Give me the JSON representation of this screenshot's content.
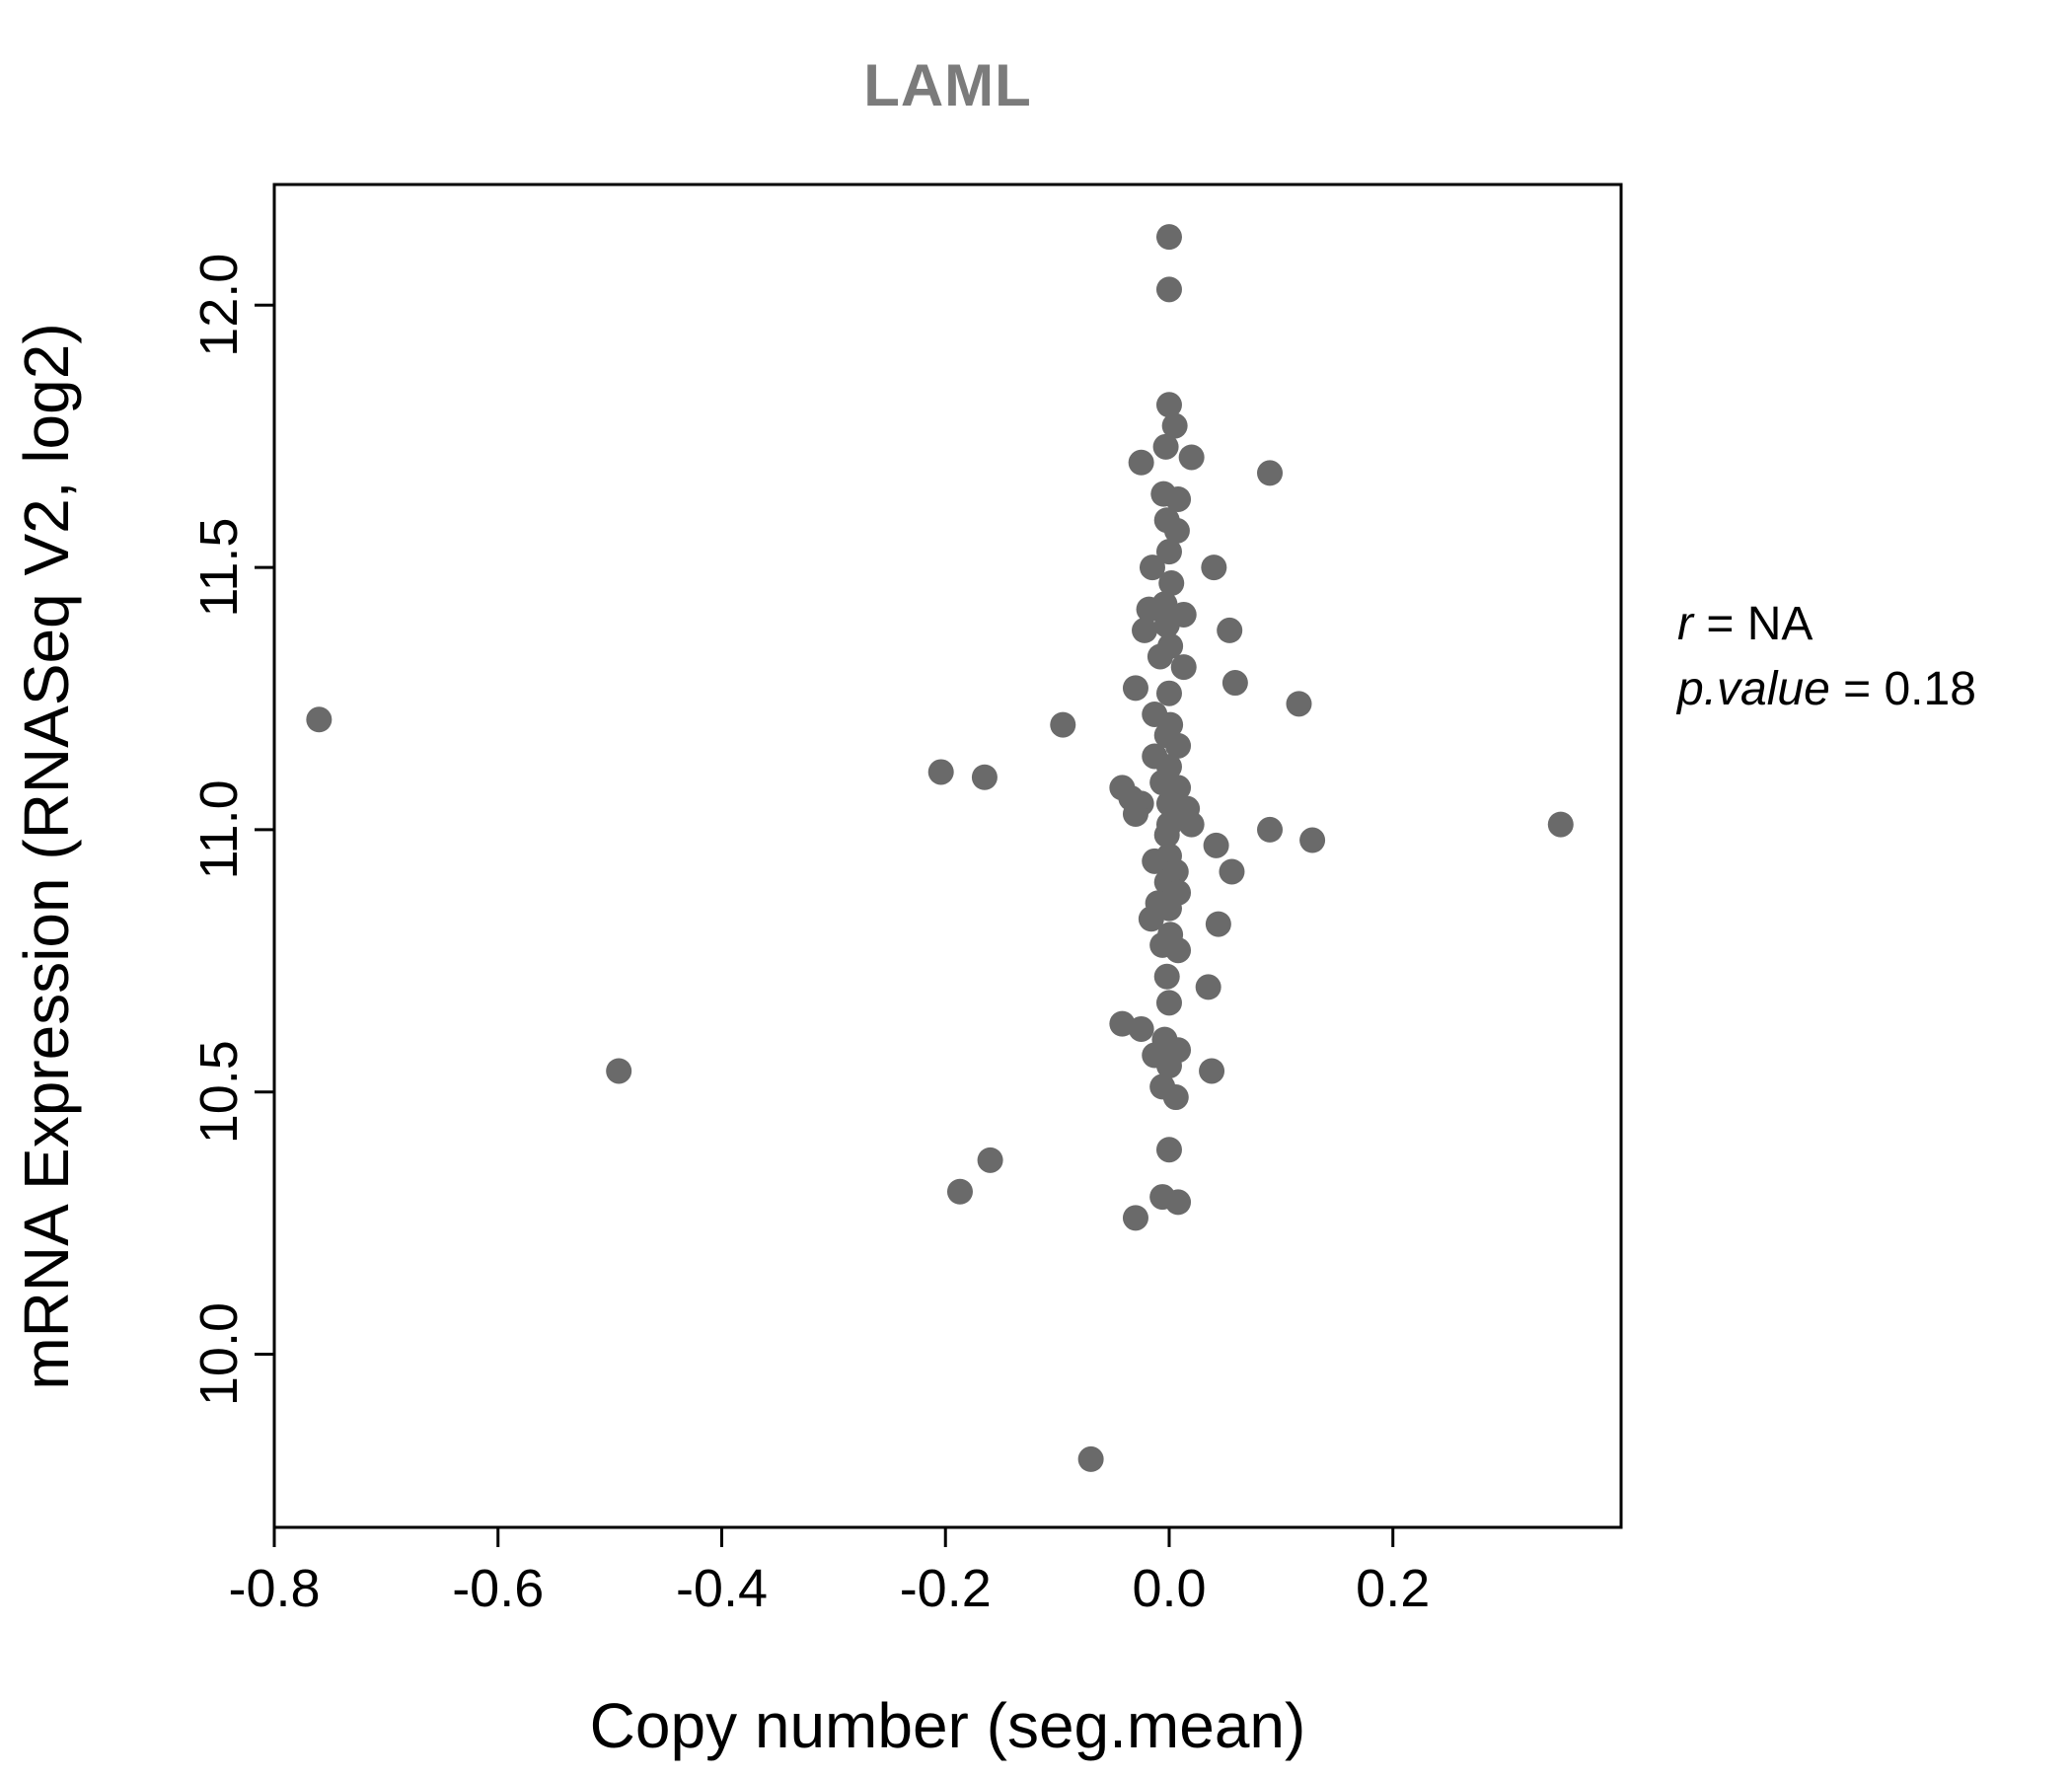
{
  "title": "LAML",
  "annotation": {
    "r_label": "r",
    "r_value": " = NA",
    "p_label": "p.value",
    "p_value": " = 0.18"
  },
  "chart_data": {
    "type": "scatter",
    "title": "LAML",
    "xlabel": "Copy number (seg.mean)",
    "ylabel": "mRNA Expression (RNASeq V2, log2)",
    "xlim": [
      -0.8,
      0.404
    ],
    "ylim": [
      9.67,
      12.23
    ],
    "xticks": [
      "-0.8",
      "-0.6",
      "-0.4",
      "-0.2",
      "0.0",
      "0.2"
    ],
    "xtick_values": [
      -0.8,
      -0.6,
      -0.4,
      -0.2,
      0.0,
      0.2
    ],
    "yticks": [
      "10.0",
      "10.5",
      "11.0",
      "11.5",
      "12.0"
    ],
    "ytick_values": [
      10.0,
      10.5,
      11.0,
      11.5,
      12.0
    ],
    "grid": false,
    "legend": "none",
    "point_color": "#6a6a6a",
    "title_color": "#7b7b7b",
    "annotation_text": [
      "r = NA",
      "p.value = 0.18"
    ],
    "points": [
      [
        0.0,
        12.13
      ],
      [
        0.0,
        12.03
      ],
      [
        0.0,
        11.81
      ],
      [
        0.005,
        11.77
      ],
      [
        -0.003,
        11.73
      ],
      [
        -0.025,
        11.7
      ],
      [
        0.02,
        11.71
      ],
      [
        0.09,
        11.68
      ],
      [
        -0.005,
        11.64
      ],
      [
        0.008,
        11.63
      ],
      [
        -0.002,
        11.59
      ],
      [
        0.007,
        11.57
      ],
      [
        0.0,
        11.53
      ],
      [
        -0.015,
        11.5
      ],
      [
        0.04,
        11.5
      ],
      [
        0.002,
        11.47
      ],
      [
        -0.004,
        11.43
      ],
      [
        -0.018,
        11.42
      ],
      [
        0.013,
        11.41
      ],
      [
        -0.002,
        11.39
      ],
      [
        -0.022,
        11.38
      ],
      [
        0.054,
        11.38
      ],
      [
        0.001,
        11.35
      ],
      [
        -0.008,
        11.33
      ],
      [
        0.013,
        11.31
      ],
      [
        0.059,
        11.28
      ],
      [
        -0.03,
        11.27
      ],
      [
        0.0,
        11.26
      ],
      [
        0.116,
        11.24
      ],
      [
        -0.76,
        11.21
      ],
      [
        -0.095,
        11.2
      ],
      [
        -0.013,
        11.22
      ],
      [
        0.001,
        11.2
      ],
      [
        -0.002,
        11.18
      ],
      [
        0.008,
        11.16
      ],
      [
        -0.013,
        11.14
      ],
      [
        0.0,
        11.12
      ],
      [
        -0.204,
        11.11
      ],
      [
        -0.165,
        11.1
      ],
      [
        -0.006,
        11.09
      ],
      [
        0.008,
        11.08
      ],
      [
        -0.042,
        11.08
      ],
      [
        -0.034,
        11.06
      ],
      [
        -0.025,
        11.05
      ],
      [
        0.0,
        11.05
      ],
      [
        0.016,
        11.04
      ],
      [
        -0.03,
        11.03
      ],
      [
        0.0,
        11.01
      ],
      [
        0.02,
        11.01
      ],
      [
        0.35,
        11.01
      ],
      [
        0.09,
        11.0
      ],
      [
        0.128,
        10.98
      ],
      [
        -0.002,
        10.99
      ],
      [
        0.042,
        10.97
      ],
      [
        0.0,
        10.95
      ],
      [
        -0.013,
        10.94
      ],
      [
        0.006,
        10.92
      ],
      [
        0.056,
        10.92
      ],
      [
        -0.002,
        10.9
      ],
      [
        0.008,
        10.88
      ],
      [
        -0.01,
        10.86
      ],
      [
        0.0,
        10.85
      ],
      [
        -0.016,
        10.83
      ],
      [
        0.044,
        10.82
      ],
      [
        0.001,
        10.8
      ],
      [
        -0.006,
        10.78
      ],
      [
        0.008,
        10.77
      ],
      [
        -0.002,
        10.72
      ],
      [
        0.035,
        10.7
      ],
      [
        0.0,
        10.67
      ],
      [
        -0.042,
        10.63
      ],
      [
        -0.025,
        10.62
      ],
      [
        -0.004,
        10.6
      ],
      [
        0.008,
        10.58
      ],
      [
        -0.013,
        10.57
      ],
      [
        0.0,
        10.55
      ],
      [
        -0.492,
        10.54
      ],
      [
        0.038,
        10.54
      ],
      [
        -0.006,
        10.51
      ],
      [
        0.006,
        10.49
      ],
      [
        0.0,
        10.39
      ],
      [
        -0.16,
        10.37
      ],
      [
        -0.187,
        10.31
      ],
      [
        -0.006,
        10.3
      ],
      [
        0.008,
        10.29
      ],
      [
        -0.03,
        10.26
      ],
      [
        -0.07,
        9.8
      ]
    ]
  }
}
